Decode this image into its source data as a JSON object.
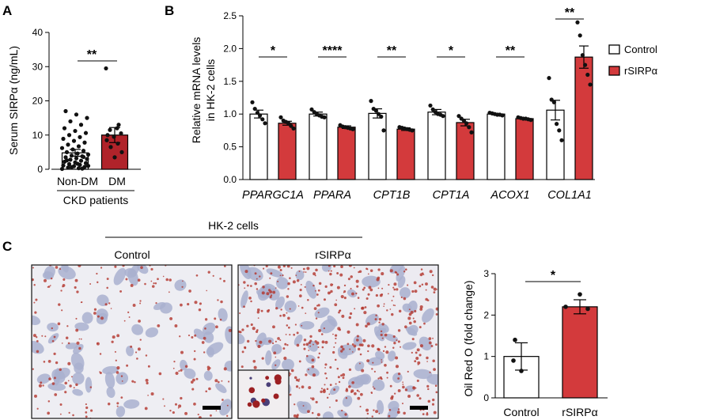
{
  "panels": {
    "a": "A",
    "b": "B",
    "c": "C"
  },
  "colors": {
    "control": "#ffffff",
    "treated": "#d33a3c",
    "dm": "#b0232a",
    "nondm": "#ffffff",
    "dot": "#111111"
  },
  "chart_data": [
    {
      "type": "bar",
      "panel": "A",
      "ylabel": "Serum SIRPα (ng/mL)",
      "ylim": [
        0,
        40
      ],
      "yticks": [
        0,
        10,
        20,
        30,
        40
      ],
      "categories": [
        "Non-DM",
        "DM"
      ],
      "group_label": "CKD patients",
      "values": [
        4.8,
        10.0
      ],
      "errors": [
        1.0,
        2.2
      ],
      "significance": "**",
      "points": [
        [
          0.1,
          0.3,
          0.5,
          0.7,
          0.9,
          1.1,
          1.3,
          1.5,
          1.8,
          2.0,
          2.2,
          2.5,
          2.8,
          3.0,
          3.2,
          3.5,
          3.8,
          4.0,
          4.3,
          4.6,
          5.0,
          5.4,
          5.8,
          6.2,
          6.7,
          7.2,
          7.8,
          8.3,
          8.9,
          9.4,
          10.0,
          10.6,
          11.2,
          12.0,
          13.0,
          14.0,
          15.0,
          16.0,
          17.0,
          0.2,
          0.6,
          1.0,
          1.6,
          2.6,
          3.6
        ],
        [
          29.5,
          12.0,
          11.5,
          10.5,
          9.5,
          8.5,
          7.5,
          6.5,
          5.0,
          3.5,
          10.0,
          13.0
        ]
      ]
    },
    {
      "type": "bar",
      "panel": "B",
      "ylabel": "Relative mRNA levels\nin HK-2 cells",
      "ylim": [
        0,
        2.5
      ],
      "yticks": [
        "0.0",
        "0.5",
        "1.0",
        "1.5",
        "2.0",
        "2.5"
      ],
      "categories": [
        "PPARGC1A",
        "PPARA",
        "CPT1B",
        "CPT1A",
        "ACOX1",
        "COL1A1"
      ],
      "legend": {
        "position": "right",
        "entries": [
          "Control",
          "rSIRPα"
        ]
      },
      "series": [
        {
          "name": "Control",
          "values": [
            1.0,
            1.0,
            1.01,
            1.03,
            1.0,
            1.06
          ],
          "errors": [
            0.06,
            0.03,
            0.07,
            0.04,
            0.01,
            0.15
          ],
          "points": [
            [
              1.18,
              1.08,
              1.02,
              0.98,
              0.92,
              0.86
            ],
            [
              1.07,
              1.03,
              1.0,
              0.98,
              0.96,
              0.95
            ],
            [
              1.2,
              1.08,
              1.05,
              1.0,
              0.96,
              0.75
            ],
            [
              1.13,
              1.07,
              1.03,
              1.0,
              0.99,
              0.97
            ],
            [
              1.02,
              1.01,
              1.0,
              0.99,
              0.99,
              0.98
            ],
            [
              1.55,
              1.22,
              1.18,
              0.85,
              0.75,
              0.6
            ]
          ]
        },
        {
          "name": "rSIRPα",
          "values": [
            0.86,
            0.8,
            0.77,
            0.87,
            0.93,
            1.87
          ],
          "errors": [
            0.03,
            0.02,
            0.02,
            0.05,
            0.01,
            0.17
          ],
          "points": [
            [
              0.95,
              0.9,
              0.88,
              0.86,
              0.82,
              0.78
            ],
            [
              0.83,
              0.81,
              0.8,
              0.79,
              0.78,
              0.77
            ],
            [
              0.8,
              0.79,
              0.78,
              0.77,
              0.76,
              0.75
            ],
            [
              0.97,
              0.93,
              0.9,
              0.86,
              0.8,
              0.72
            ],
            [
              0.95,
              0.94,
              0.93,
              0.93,
              0.92,
              0.91
            ],
            [
              2.4,
              2.2,
              1.9,
              1.75,
              1.6,
              1.45
            ]
          ]
        }
      ],
      "significance": [
        "*",
        "****",
        "**",
        "*",
        "**",
        "**"
      ]
    },
    {
      "type": "bar",
      "panel": "C",
      "ylabel": "Oil Red O (fold change)",
      "ylim": [
        0,
        3
      ],
      "yticks": [
        0,
        1,
        2,
        3
      ],
      "categories": [
        "Control",
        "rSIRPα"
      ],
      "values": [
        1.0,
        2.2
      ],
      "errors": [
        0.33,
        0.17
      ],
      "significance": "*",
      "points": [
        [
          1.4,
          0.9,
          0.65
        ],
        [
          2.5,
          2.2,
          2.15
        ]
      ]
    }
  ],
  "micrographs": {
    "header": "HK-2 cells",
    "labels": [
      "Control",
      "rSIRPα"
    ]
  }
}
